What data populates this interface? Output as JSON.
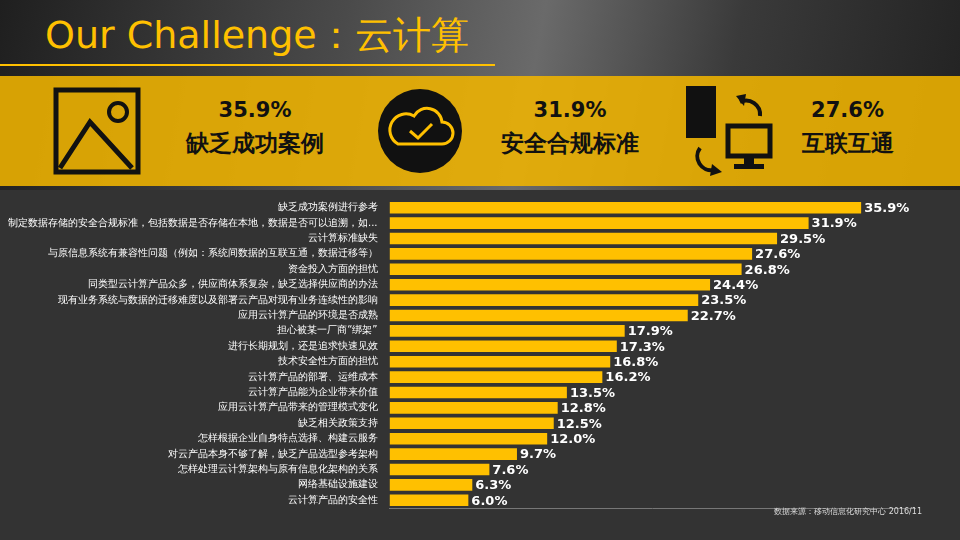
{
  "header": {
    "title": "Our Challenge：云计算"
  },
  "highlights": [
    {
      "value_label": "35.9%",
      "label": "缺乏成功案例"
    },
    {
      "value_label": "31.9%",
      "label": "安全合规标准"
    },
    {
      "value_label": "27.6%",
      "label": "互联互通"
    }
  ],
  "chart_data": {
    "type": "bar",
    "orientation": "horizontal",
    "categories": [
      "缺乏成功案例进行参考",
      "制定数据存储的安全合规标准，包括数据是否存储在本地，数据是否可以追溯，如...",
      "云计算标准缺失",
      "与原信息系统有兼容性问题（例如：系统间数据的互联互通，数据迁移等）",
      "资金投入方面的担忧",
      "同类型云计算产品众多，供应商体系复杂，缺乏选择供应商的办法",
      "现有业务系统与数据的迁移难度以及部署云产品对现有业务连续性的影响",
      "应用云计算产品的环境是否成熟",
      "担心被某一厂商“绑架”",
      "进行长期规划，还是追求快速见效",
      "技术安全性方面的担忧",
      "云计算产品的部署、运维成本",
      "云计算产品能为企业带来价值",
      "应用云计算产品带来的管理模式变化",
      "缺乏相关政策支持",
      "怎样根据企业自身特点选择、构建云服务",
      "对云产品本身不够了解，缺乏产品选型参考架构",
      "怎样处理云计算架构与原有信息化架构的关系",
      "网络基础设施建设",
      "云计算产品的安全性"
    ],
    "values": [
      35.9,
      31.9,
      29.5,
      27.6,
      26.8,
      24.4,
      23.5,
      22.7,
      17.9,
      17.3,
      16.8,
      16.2,
      13.5,
      12.8,
      12.5,
      12.0,
      9.7,
      7.6,
      6.3,
      6.0
    ],
    "value_labels": [
      "35.9%",
      "31.9%",
      "29.5%",
      "27.6%",
      "26.8%",
      "24.4%",
      "23.5%",
      "22.7%",
      "17.9%",
      "17.3%",
      "16.8%",
      "16.2%",
      "13.5%",
      "12.8%",
      "12.5%",
      "12.0%",
      "9.7%",
      "7.6%",
      "6.3%",
      "6.0%"
    ],
    "color": "#FFC000",
    "xlim": [
      0,
      40
    ],
    "grid": false,
    "data_labels": true,
    "tick_labels": "y"
  },
  "source": "数据来源：移动信息化研究中心 2016/11"
}
